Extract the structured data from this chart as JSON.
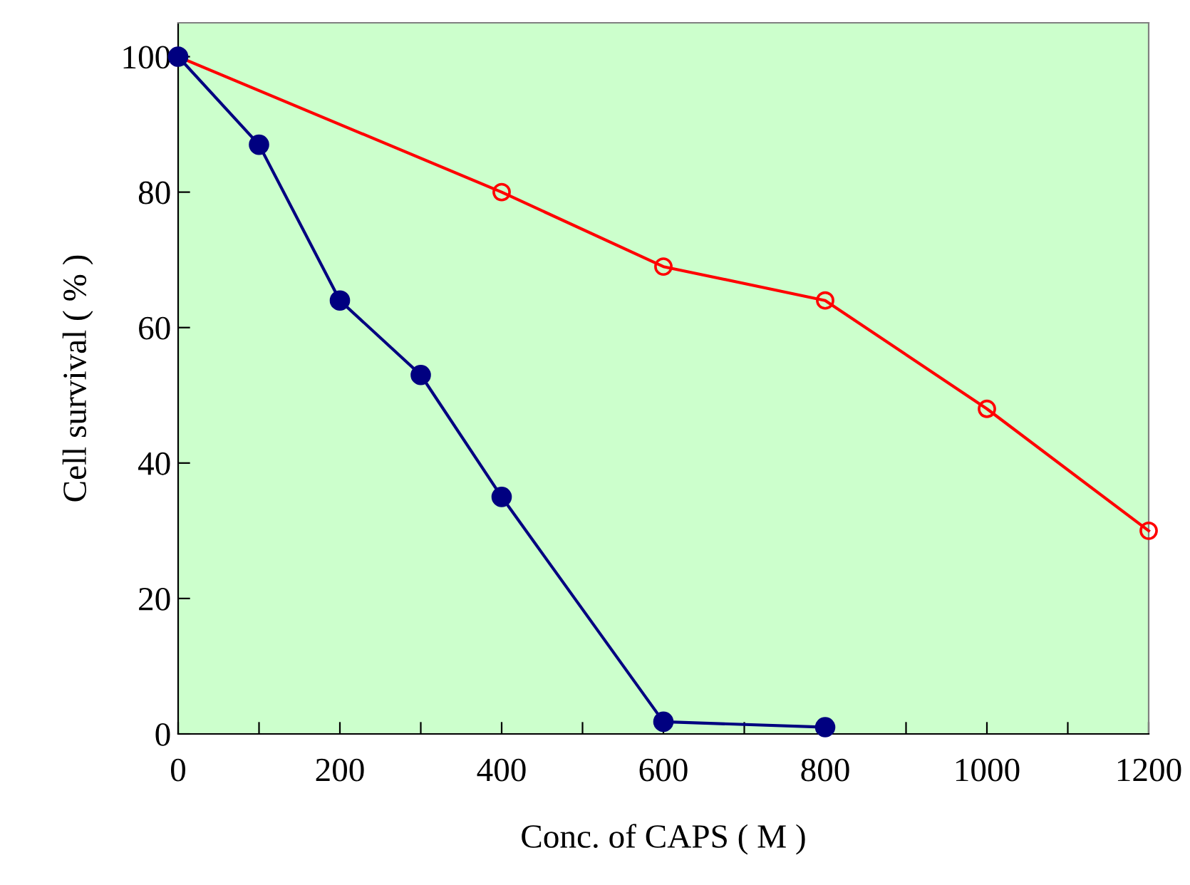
{
  "chart_data": {
    "type": "line",
    "xlabel": "Conc. of CAPS ( M )",
    "ylabel": "Cell survival ( % )",
    "xlim": [
      0,
      1200
    ],
    "ylim": [
      0,
      105
    ],
    "xticks": [
      0,
      {
        "value": 100,
        "label": null
      },
      200,
      {
        "value": 300,
        "label": null
      },
      400,
      {
        "value": 500,
        "label": null
      },
      600,
      {
        "value": 700,
        "label": null
      },
      800,
      {
        "value": 900,
        "label": null
      },
      1000,
      {
        "value": 1100,
        "label": null
      },
      1200
    ],
    "yticks": [
      0,
      20,
      40,
      60,
      80,
      100
    ],
    "grid": false,
    "marker": "circle",
    "line_style": "solid",
    "series": [
      {
        "color": "#ff0000",
        "x": [
          0,
          400,
          600,
          800,
          1000,
          1200
        ],
        "values": [
          100,
          80,
          69,
          64,
          48,
          30
        ]
      },
      {
        "color": "#000080",
        "x": [
          0,
          100,
          200,
          300,
          400,
          600,
          800
        ],
        "values": [
          100,
          87,
          64,
          53,
          35,
          1.8,
          1
        ]
      }
    ]
  }
}
